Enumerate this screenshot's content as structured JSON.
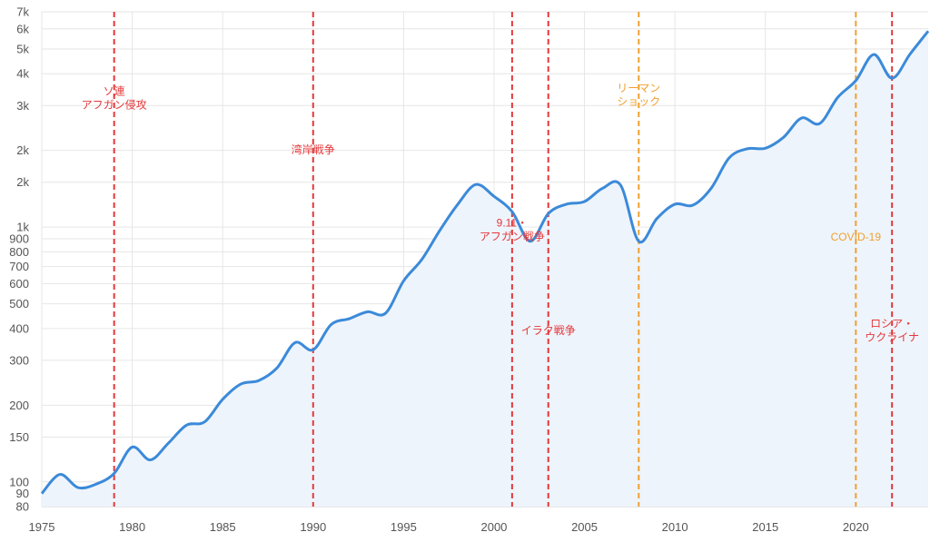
{
  "chart_data": {
    "type": "area",
    "title": "",
    "xlabel": "",
    "ylabel": "",
    "y_scale": "log",
    "grid": true,
    "xlim": [
      1975,
      2024
    ],
    "ylim": [
      80,
      7000
    ],
    "x_ticks": [
      {
        "value": 1975,
        "label": "1975"
      },
      {
        "value": 1980,
        "label": "1980"
      },
      {
        "value": 1985,
        "label": "1985"
      },
      {
        "value": 1990,
        "label": "1990"
      },
      {
        "value": 1995,
        "label": "1995"
      },
      {
        "value": 2000,
        "label": "2000"
      },
      {
        "value": 2005,
        "label": "2005"
      },
      {
        "value": 2010,
        "label": "2010"
      },
      {
        "value": 2015,
        "label": "2015"
      },
      {
        "value": 2020,
        "label": "2020"
      }
    ],
    "y_ticks": [
      {
        "value": 80,
        "label": "80"
      },
      {
        "value": 90,
        "label": "90"
      },
      {
        "value": 100,
        "label": "100"
      },
      {
        "value": 150,
        "label": "150"
      },
      {
        "value": 200,
        "label": "200"
      },
      {
        "value": 300,
        "label": "300"
      },
      {
        "value": 400,
        "label": "400"
      },
      {
        "value": 500,
        "label": "500"
      },
      {
        "value": 600,
        "label": "600"
      },
      {
        "value": 700,
        "label": "700"
      },
      {
        "value": 800,
        "label": "800"
      },
      {
        "value": 900,
        "label": "900"
      },
      {
        "value": 1000,
        "label": "1k"
      },
      {
        "value": 1500,
        "label": "2k"
      },
      {
        "value": 2000,
        "label": "2k"
      },
      {
        "value": 3000,
        "label": "3k"
      },
      {
        "value": 4000,
        "label": "4k"
      },
      {
        "value": 5000,
        "label": "5k"
      },
      {
        "value": 6000,
        "label": "6k"
      },
      {
        "value": 7000,
        "label": "7k"
      }
    ],
    "series": [
      {
        "color": "#3b8ad9",
        "fill": "#eef4fb",
        "x": [
          1975,
          1976,
          1977,
          1978,
          1979,
          1980,
          1981,
          1982,
          1983,
          1984,
          1985,
          1986,
          1987,
          1988,
          1989,
          1990,
          1991,
          1992,
          1993,
          1994,
          1995,
          1996,
          1997,
          1998,
          1999,
          2000,
          2001,
          2002,
          2003,
          2004,
          2005,
          2006,
          2007,
          2008,
          2009,
          2010,
          2011,
          2012,
          2013,
          2014,
          2015,
          2016,
          2017,
          2018,
          2019,
          2020,
          2021,
          2022,
          2023,
          2024
        ],
        "y": [
          90,
          107,
          95,
          98,
          108,
          137,
          122,
          142,
          167,
          172,
          211,
          242,
          250,
          280,
          352,
          330,
          415,
          437,
          465,
          459,
          615,
          745,
          970,
          1230,
          1470,
          1320,
          1150,
          880,
          1130,
          1230,
          1260,
          1420,
          1460,
          880,
          1080,
          1230,
          1220,
          1420,
          1870,
          2030,
          2040,
          2250,
          2680,
          2550,
          3230,
          3760,
          4760,
          3840,
          4780,
          5880
        ]
      }
    ],
    "annotations": [
      {
        "x": 1979,
        "color": "#e5383b",
        "label": "ソ連\nアフガン侵攻",
        "label_y": 3300
      },
      {
        "x": 1990,
        "color": "#e5383b",
        "label": "湾岸戦争",
        "label_y": 1950
      },
      {
        "x": 2001,
        "color": "#e5383b",
        "label": "9.11・\nアフガン戦争",
        "label_y": 1005
      },
      {
        "x": 2003,
        "color": "#e5383b",
        "label": "イラク戦争",
        "label_y": 380
      },
      {
        "x": 2008,
        "color": "#f0a030",
        "label": "リーマン\nショック",
        "label_y": 3400
      },
      {
        "x": 2020,
        "color": "#f0a030",
        "label": "COVID-19",
        "label_y": 885
      },
      {
        "x": 2022,
        "color": "#e5383b",
        "label": "ロシア・\nウクライナ",
        "label_y": 405
      }
    ]
  }
}
